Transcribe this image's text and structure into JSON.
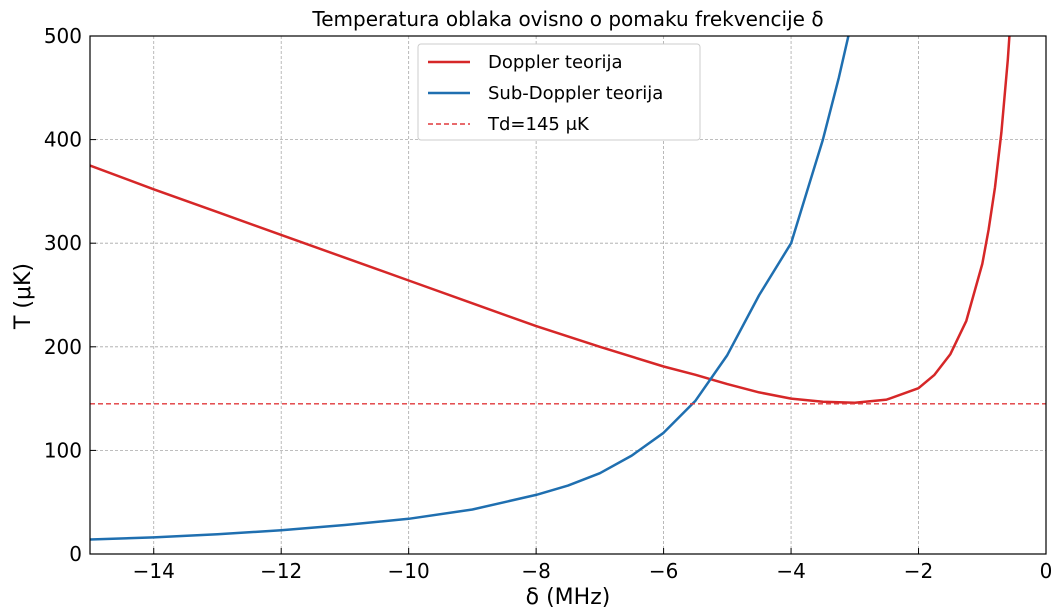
{
  "chart_data": {
    "type": "line",
    "title": "Temperatura oblaka ovisno o pomaku frekvencije δ",
    "xlabel": "δ (MHz)",
    "ylabel": "T (μK)",
    "xlim": [
      -15,
      0
    ],
    "ylim": [
      0,
      500
    ],
    "xticks": [
      -14,
      -12,
      -10,
      -8,
      -6,
      -4,
      -2,
      0
    ],
    "xtick_labels": [
      "−14",
      "−12",
      "−10",
      "−8",
      "−6",
      "−4",
      "−2",
      "0"
    ],
    "yticks": [
      0,
      100,
      200,
      300,
      400,
      500
    ],
    "ytick_labels": [
      "0",
      "100",
      "200",
      "300",
      "400",
      "500"
    ],
    "grid": true,
    "legend_position": "top-center",
    "series": [
      {
        "name": "Doppler teorija",
        "color": "#d62728",
        "style": "solid",
        "x": [
          -15,
          -14,
          -13,
          -12,
          -11,
          -10,
          -9,
          -8,
          -7,
          -6,
          -5.5,
          -5,
          -4.5,
          -4,
          -3.5,
          -3,
          -2.5,
          -2,
          -1.75,
          -1.5,
          -1.25,
          -1,
          -0.9,
          -0.8,
          -0.7,
          -0.6,
          -0.55,
          -0.5
        ],
        "y": [
          375,
          352,
          330,
          308,
          286,
          264,
          242,
          220,
          200,
          181,
          173,
          164,
          156,
          150,
          147,
          146,
          149,
          160,
          173,
          193,
          225,
          280,
          313,
          354,
          407,
          477,
          521,
          572
        ]
      },
      {
        "name": "Sub-Doppler teorija",
        "color": "#1f6fb0",
        "style": "solid",
        "x": [
          -15,
          -14,
          -13,
          -12,
          -11,
          -10,
          -9,
          -8,
          -7.5,
          -7,
          -6.5,
          -6,
          -5.5,
          -5,
          -4.5,
          -4,
          -3.75,
          -3.5,
          -3.25,
          -3.1,
          -3.0
        ],
        "y": [
          14,
          16,
          19,
          23,
          28,
          34,
          43,
          57,
          66,
          78,
          95,
          117,
          148,
          192,
          250,
          300,
          350,
          400,
          460,
          500,
          520
        ]
      },
      {
        "name": "Td=145 μK",
        "color": "#e0393b",
        "style": "dashed",
        "x": [
          -15,
          0
        ],
        "y": [
          145,
          145
        ]
      }
    ]
  }
}
